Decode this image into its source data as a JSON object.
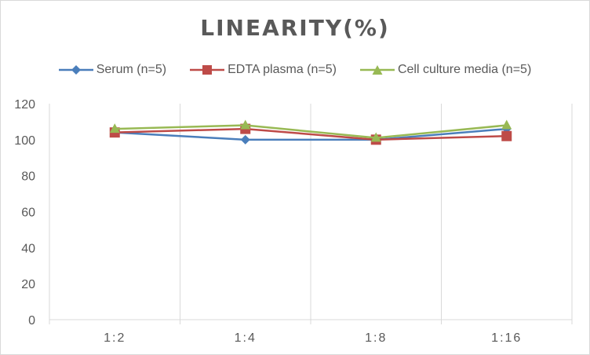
{
  "chart_data": {
    "type": "line",
    "title": "LINEARITY(%)",
    "categories": [
      "1:2",
      "1:4",
      "1:8",
      "1:16"
    ],
    "ylim": [
      0,
      120
    ],
    "yticks": [
      0,
      20,
      40,
      60,
      80,
      100,
      120
    ],
    "grid": "vertical",
    "legend_position": "top",
    "series": [
      {
        "name": "Serum (n=5)",
        "values": [
          104,
          100,
          100,
          106
        ],
        "color": "#4a7ebb",
        "marker": "diamond"
      },
      {
        "name": "EDTA plasma (n=5)",
        "values": [
          104,
          106,
          100,
          102
        ],
        "color": "#be4b48",
        "marker": "square"
      },
      {
        "name": "Cell culture media (n=5)",
        "values": [
          106,
          108,
          101,
          108
        ],
        "color": "#98b954",
        "marker": "triangle"
      }
    ]
  }
}
